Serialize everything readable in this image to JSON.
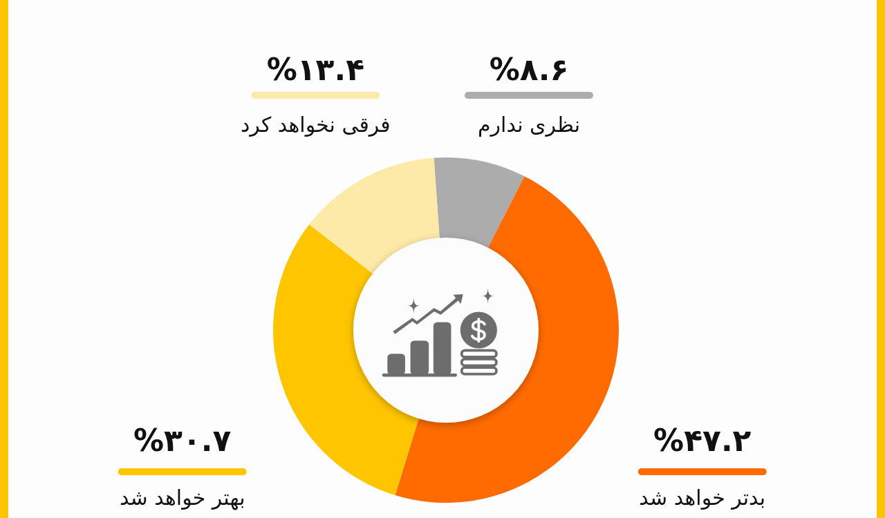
{
  "chart_data": {
    "type": "donut",
    "categories": [
      "نظری ندارم",
      "بدتر خواهد شد",
      "بهتر خواهد شد",
      "فرقی نخواهد کرد"
    ],
    "values": [
      8.6,
      47.2,
      30.7,
      13.4
    ],
    "colors": [
      "#acacac",
      "#ff6b00",
      "#ffc600",
      "#fdeaa9"
    ],
    "value_labels": [
      "%۸.۶",
      "%۴۷.۲",
      "%۳۰.۷",
      "%۱۳.۴"
    ]
  }
}
